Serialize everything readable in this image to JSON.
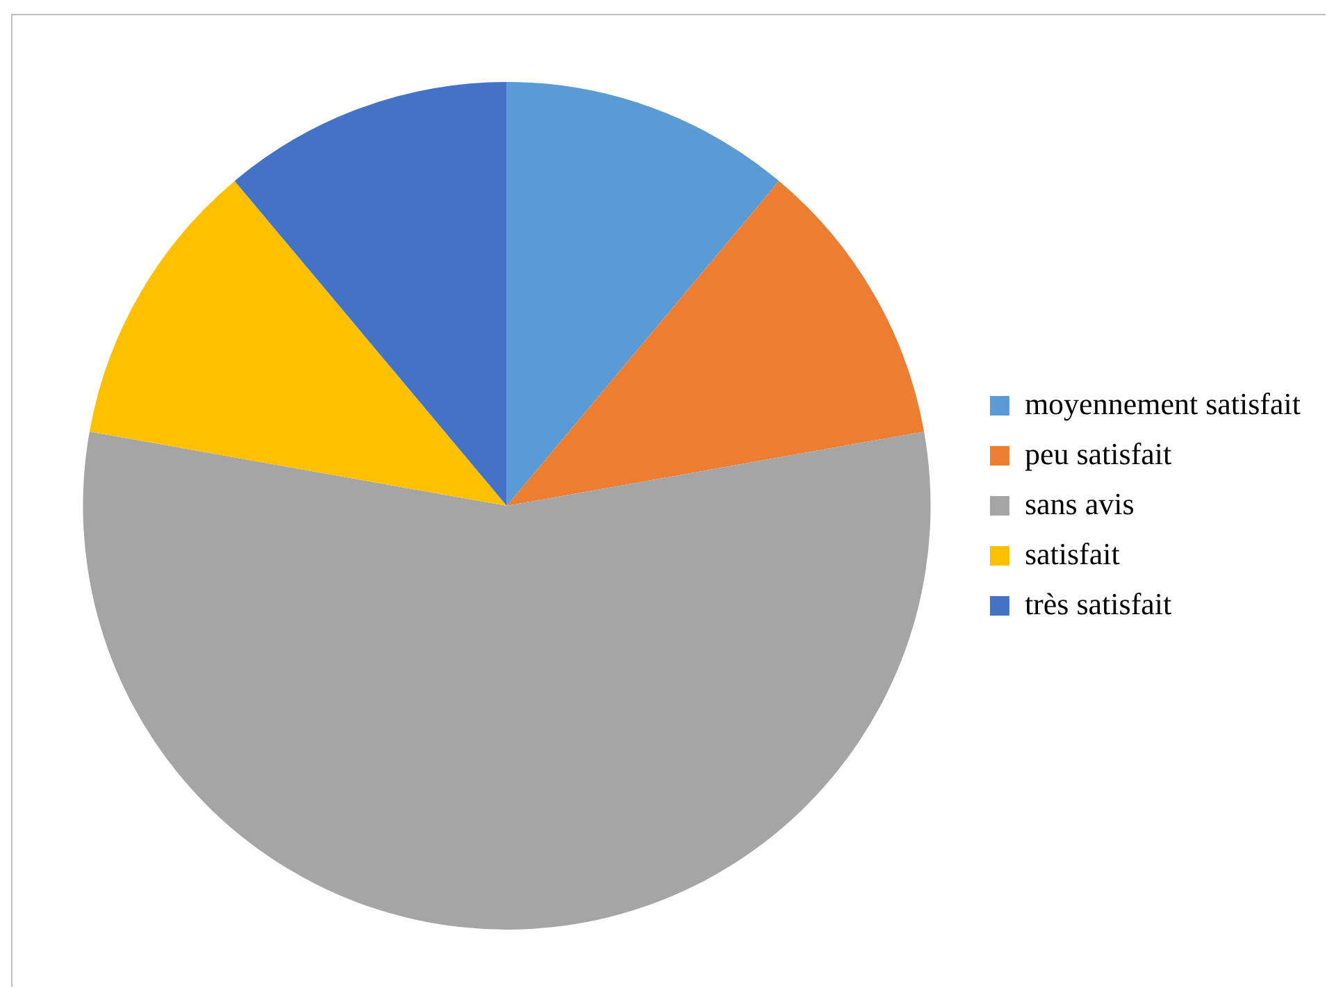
{
  "chart_data": {
    "type": "pie",
    "categories": [
      "moyennement satisfait",
      "peu satisfait",
      "sans avis",
      "satisfait",
      "très satisfait"
    ],
    "values": [
      11.1,
      11.1,
      55.6,
      11.1,
      11.1
    ],
    "colors": [
      "#5b9bd5",
      "#ed7d31",
      "#a5a5a5",
      "#ffc000",
      "#4472c4"
    ],
    "legend": "right"
  }
}
